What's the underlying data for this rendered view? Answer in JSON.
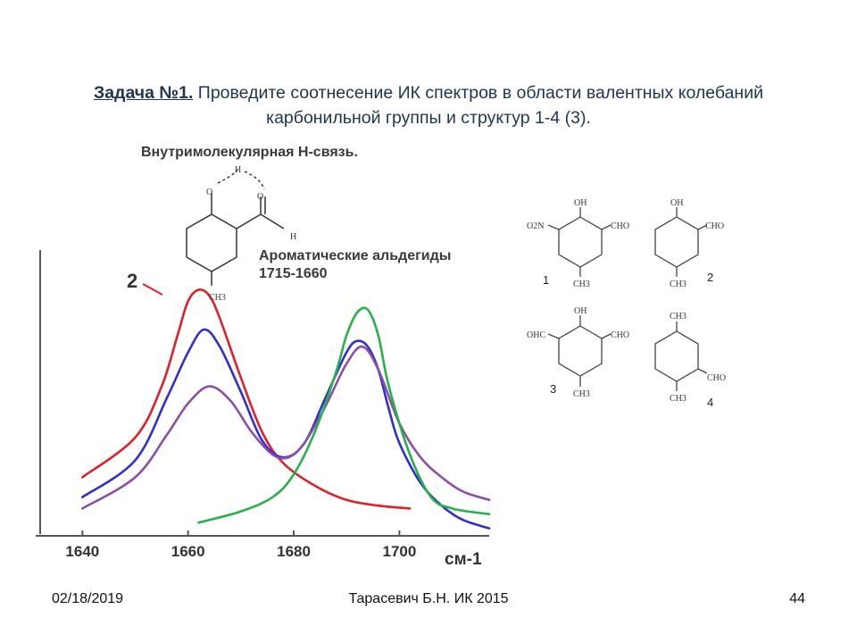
{
  "slide": {
    "title_task": "Задача №1.",
    "title_text": " Проведите соотнесение ИК спектров в области валентных колебаний",
    "title_line2": "карбонильной группы и структур 1-4 (3)."
  },
  "annotations": {
    "hbond": "Внутримолекулярная Н-связь.",
    "aldehyde_line1": "Ароматические альдегиды",
    "aldehyde_line2": "1715-1660",
    "hbond_mol": {
      "h": "H",
      "o1": "O",
      "o2": "O",
      "h2": "H",
      "ch3": "CH3"
    }
  },
  "chart_data": {
    "type": "line",
    "title": "",
    "xlabel": "",
    "x_unit": "см-1",
    "xticks": [
      "1640",
      "1660",
      "1680",
      "1700"
    ],
    "xlim": [
      1632,
      1717
    ],
    "ylim": [
      0,
      1
    ],
    "grid": false,
    "series": [
      {
        "name": "2",
        "color": "#e0202a",
        "x": [
          1640,
          1650,
          1655,
          1658,
          1660,
          1662,
          1664,
          1666,
          1670,
          1674,
          1678,
          1684,
          1690,
          1696,
          1702
        ],
        "y": [
          0.2,
          0.34,
          0.52,
          0.7,
          0.82,
          0.86,
          0.84,
          0.76,
          0.55,
          0.36,
          0.25,
          0.17,
          0.12,
          0.1,
          0.09
        ]
      },
      {
        "name": "",
        "color": "#2f2fd0",
        "x": [
          1640,
          1650,
          1656,
          1660,
          1663,
          1666,
          1670,
          1674,
          1678,
          1682,
          1686,
          1690,
          1692,
          1694,
          1696,
          1698,
          1700,
          1704,
          1708,
          1712,
          1717
        ],
        "y": [
          0.13,
          0.26,
          0.48,
          0.64,
          0.72,
          0.66,
          0.5,
          0.33,
          0.27,
          0.32,
          0.48,
          0.64,
          0.68,
          0.66,
          0.58,
          0.44,
          0.32,
          0.18,
          0.1,
          0.05,
          0.02
        ]
      },
      {
        "name": "",
        "color": "#8a4fa8",
        "x": [
          1640,
          1650,
          1656,
          1660,
          1664,
          1668,
          1672,
          1676,
          1679,
          1682,
          1686,
          1690,
          1693,
          1696,
          1700,
          1704,
          1708,
          1712,
          1717
        ],
        "y": [
          0.09,
          0.2,
          0.35,
          0.46,
          0.52,
          0.47,
          0.36,
          0.28,
          0.27,
          0.32,
          0.45,
          0.6,
          0.66,
          0.58,
          0.39,
          0.27,
          0.2,
          0.15,
          0.12
        ]
      },
      {
        "name": "",
        "color": "#28b04a",
        "x": [
          1662,
          1670,
          1676,
          1680,
          1684,
          1688,
          1690,
          1692,
          1694,
          1696,
          1698,
          1702,
          1706,
          1710,
          1717
        ],
        "y": [
          0.04,
          0.08,
          0.13,
          0.21,
          0.36,
          0.57,
          0.7,
          0.78,
          0.79,
          0.7,
          0.52,
          0.28,
          0.13,
          0.09,
          0.07
        ]
      }
    ]
  },
  "structures": [
    {
      "num": "1",
      "labels": {
        "oh": "OH",
        "left": "O2N",
        "right": "CHO",
        "bottom": "CH3"
      }
    },
    {
      "num": "2",
      "labels": {
        "oh": "OH",
        "right": "CHO",
        "bottom": "CH3"
      }
    },
    {
      "num": "3",
      "labels": {
        "oh": "OH",
        "left": "OHC",
        "right": "CHO",
        "bottom": "CH3"
      }
    },
    {
      "num": "4",
      "labels": {
        "top": "CH3",
        "right": "CHO",
        "bottom": "CH3"
      }
    }
  ],
  "footer": {
    "date": "02/18/2019",
    "author": "Тарасевич Б.Н.  ИК 2015",
    "page": "44"
  },
  "colors": {
    "title": "#1f3550",
    "red": "#e0202a",
    "blue": "#2f2fd0",
    "purple": "#8a4fa8",
    "green": "#28b04a"
  }
}
